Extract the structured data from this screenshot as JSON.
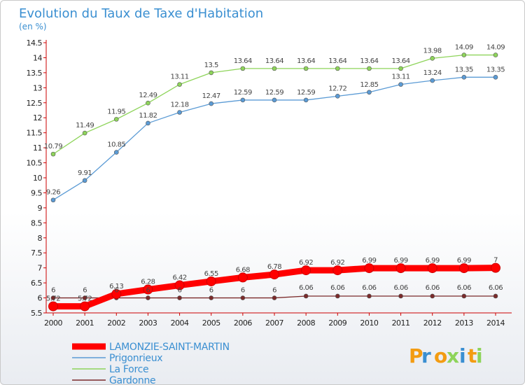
{
  "chart_data": {
    "type": "line",
    "title": "Evolution du Taux de Taxe d'Habitation",
    "subtitle": "(en %)",
    "x": [
      "2000",
      "2001",
      "2002",
      "2003",
      "2004",
      "2005",
      "2006",
      "2007",
      "2008",
      "2009",
      "2010",
      "2011",
      "2012",
      "2013",
      "2014"
    ],
    "ylim": [
      5.5,
      14.5
    ],
    "yticks": [
      "5.5",
      "6",
      "6.5",
      "7",
      "7.5",
      "8",
      "8.5",
      "9",
      "9.5",
      "10",
      "10.5",
      "11",
      "11.5",
      "12",
      "12.5",
      "13",
      "13.5",
      "14",
      "14.5"
    ],
    "grid": false,
    "legend_position": "bottom-left",
    "series": [
      {
        "name": "LAMONZIE-SAINT-MARTIN",
        "color": "#ff0000",
        "values": [
          5.72,
          5.72,
          6.13,
          6.28,
          6.42,
          6.55,
          6.68,
          6.78,
          6.92,
          6.92,
          6.99,
          6.99,
          6.99,
          6.99,
          7
        ],
        "labels": [
          "5.72",
          "5.72",
          "6.13",
          "6.28",
          "6.42",
          "6.55",
          "6.68",
          "6.78",
          "6.92",
          "6.92",
          "6.99",
          "6.99",
          "6.99",
          "6.99",
          "7"
        ]
      },
      {
        "name": "Prigonrieux",
        "color": "#5b9bd5",
        "values": [
          9.26,
          9.91,
          10.85,
          11.82,
          12.18,
          12.47,
          12.59,
          12.59,
          12.59,
          12.72,
          12.85,
          13.11,
          13.24,
          13.35,
          13.35
        ],
        "labels": [
          "9.26",
          "9.91",
          "10.85",
          "11.82",
          "12.18",
          "12.47",
          "12.59",
          "12.59",
          "12.59",
          "12.72",
          "12.85",
          "13.11",
          "13.24",
          "13.35",
          "13.35"
        ]
      },
      {
        "name": "La Force",
        "color": "#8ed45a",
        "values": [
          10.79,
          11.49,
          11.95,
          12.49,
          13.11,
          13.5,
          13.64,
          13.64,
          13.64,
          13.64,
          13.64,
          13.64,
          13.98,
          14.09,
          14.09
        ],
        "labels": [
          "10.79",
          "11.49",
          "11.95",
          "12.49",
          "13.11",
          "13.5",
          "13.64",
          "13.64",
          "13.64",
          "13.64",
          "13.64",
          "13.64",
          "13.98",
          "14.09",
          "14.09"
        ]
      },
      {
        "name": "Gardonne",
        "color": "#7b2a2a",
        "values": [
          6,
          6,
          6,
          6,
          6,
          6,
          6,
          6,
          6.06,
          6.06,
          6.06,
          6.06,
          6.06,
          6.06,
          6.06
        ],
        "labels": [
          "6",
          "6",
          "6",
          "6",
          "6",
          "6",
          "6",
          "6",
          "6.06",
          "6.06",
          "6.06",
          "6.06",
          "6.06",
          "6.06",
          "6.06"
        ]
      }
    ]
  },
  "logo": {
    "text": "Proxiti"
  }
}
